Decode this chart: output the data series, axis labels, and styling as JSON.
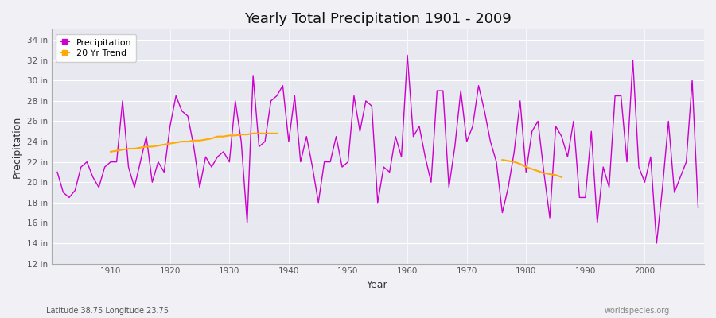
{
  "title": "Yearly Total Precipitation 1901 - 2009",
  "xlabel": "Year",
  "ylabel": "Precipitation",
  "lat_lon_label": "Latitude 38.75 Longitude 23.75",
  "source_label": "worldspecies.org",
  "fig_facecolor": "#f0f0f5",
  "plot_facecolor": "#e8e8f0",
  "precip_color": "#cc00cc",
  "trend_color": "#ffaa00",
  "years": [
    1901,
    1902,
    1903,
    1904,
    1905,
    1906,
    1907,
    1908,
    1909,
    1910,
    1911,
    1912,
    1913,
    1914,
    1915,
    1916,
    1917,
    1918,
    1919,
    1920,
    1921,
    1922,
    1923,
    1924,
    1925,
    1926,
    1927,
    1928,
    1929,
    1930,
    1931,
    1932,
    1933,
    1934,
    1935,
    1936,
    1937,
    1938,
    1939,
    1940,
    1941,
    1942,
    1943,
    1944,
    1945,
    1946,
    1947,
    1948,
    1949,
    1950,
    1951,
    1952,
    1953,
    1954,
    1955,
    1956,
    1957,
    1958,
    1959,
    1960,
    1961,
    1962,
    1963,
    1964,
    1965,
    1966,
    1967,
    1968,
    1969,
    1970,
    1971,
    1972,
    1973,
    1974,
    1975,
    1976,
    1977,
    1978,
    1979,
    1980,
    1981,
    1982,
    1983,
    1984,
    1985,
    1986,
    1987,
    1988,
    1989,
    1990,
    1991,
    1992,
    1993,
    1994,
    1995,
    1996,
    1997,
    1998,
    1999,
    2000,
    2001,
    2002,
    2003,
    2004,
    2005,
    2006,
    2007,
    2008,
    2009
  ],
  "precip": [
    21.0,
    19.0,
    18.5,
    19.2,
    21.5,
    22.0,
    20.5,
    19.5,
    21.5,
    22.0,
    22.0,
    28.0,
    21.5,
    19.5,
    22.0,
    24.5,
    20.0,
    22.0,
    21.0,
    25.5,
    28.5,
    27.0,
    26.5,
    23.5,
    19.5,
    22.5,
    21.5,
    22.5,
    23.0,
    22.0,
    28.0,
    24.0,
    16.0,
    30.5,
    23.5,
    24.0,
    28.0,
    28.5,
    29.5,
    24.0,
    28.5,
    22.0,
    24.5,
    21.5,
    18.0,
    22.0,
    22.0,
    24.5,
    21.5,
    22.0,
    28.5,
    25.0,
    28.0,
    27.5,
    18.0,
    21.5,
    21.0,
    24.5,
    22.5,
    32.5,
    24.5,
    25.5,
    22.5,
    20.0,
    29.0,
    29.0,
    19.5,
    23.5,
    29.0,
    24.0,
    25.5,
    29.5,
    27.0,
    24.0,
    22.0,
    17.0,
    19.5,
    23.0,
    28.0,
    21.0,
    25.0,
    26.0,
    21.0,
    16.5,
    25.5,
    24.5,
    22.5,
    26.0,
    18.5,
    18.5,
    25.0,
    16.0,
    21.5,
    19.5,
    28.5,
    28.5,
    22.0,
    32.0,
    21.5,
    20.0,
    22.5,
    14.0,
    19.5,
    26.0,
    19.0,
    20.5,
    22.0,
    30.0,
    17.5
  ],
  "trend_seg1_years": [
    1910,
    1911,
    1912,
    1913,
    1914,
    1915,
    1916,
    1917,
    1918,
    1919,
    1920,
    1921,
    1922,
    1923,
    1924,
    1925,
    1926,
    1927,
    1928,
    1929,
    1930,
    1931,
    1932,
    1933,
    1934,
    1935,
    1936,
    1937,
    1938
  ],
  "trend_seg1_vals": [
    23.0,
    23.1,
    23.2,
    23.3,
    23.3,
    23.4,
    23.5,
    23.5,
    23.6,
    23.7,
    23.8,
    23.9,
    24.0,
    24.0,
    24.1,
    24.1,
    24.2,
    24.3,
    24.5,
    24.5,
    24.6,
    24.6,
    24.7,
    24.7,
    24.8,
    24.8,
    24.8,
    24.8,
    24.8
  ],
  "trend_seg2_years": [
    1976,
    1977,
    1978,
    1979,
    1980,
    1981,
    1982,
    1983,
    1984,
    1985,
    1986
  ],
  "trend_seg2_vals": [
    22.2,
    22.1,
    22.0,
    21.8,
    21.5,
    21.3,
    21.1,
    20.9,
    20.8,
    20.7,
    20.5
  ],
  "ytick_vals": [
    12,
    14,
    16,
    18,
    20,
    22,
    24,
    26,
    28,
    30,
    32,
    34
  ],
  "xtick_vals": [
    1910,
    1920,
    1930,
    1940,
    1950,
    1960,
    1970,
    1980,
    1990,
    2000
  ],
  "xlim": [
    1900,
    2010
  ],
  "ylim": [
    12,
    35
  ]
}
